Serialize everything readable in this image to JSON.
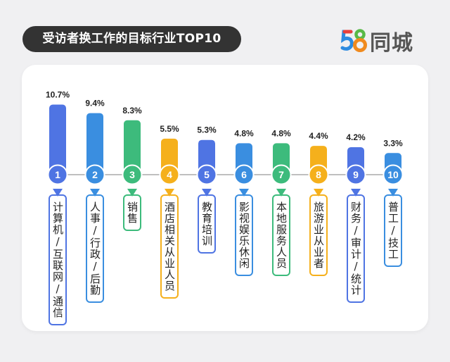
{
  "header": {
    "title": "受访者换工作的目标行业TOP10",
    "logo": {
      "digits": "58",
      "text": "同城",
      "digit_colors": [
        "#e8403b",
        "#2d8be0",
        "#58b947",
        "#f08a1e"
      ]
    }
  },
  "chart_data": {
    "type": "bar",
    "title": "受访者换工作的目标行业TOP10",
    "xlabel": "",
    "ylabel": "",
    "unit": "%",
    "ylim": [
      0,
      12
    ],
    "grid": false,
    "categories": [
      "计算机/互联网/通信",
      "人事/行政/后勤",
      "销售",
      "酒店相关从业人员",
      "教育培训",
      "影视娱乐休闲",
      "本地服务人员",
      "旅游业从业者",
      "财务/审计/统计",
      "普工/技工"
    ],
    "ranks": [
      "1",
      "2",
      "3",
      "4",
      "5",
      "6",
      "7",
      "8",
      "9",
      "10"
    ],
    "values": [
      10.7,
      9.4,
      8.3,
      5.5,
      5.3,
      4.8,
      4.8,
      4.4,
      4.2,
      3.3
    ],
    "value_labels": [
      "10.7%",
      "9.4%",
      "8.3%",
      "5.5%",
      "5.3%",
      "4.8%",
      "4.8%",
      "4.4%",
      "4.2%",
      "3.3%"
    ],
    "colors": [
      "#4f74e3",
      "#3a8ee0",
      "#3dbb7c",
      "#f5b01c",
      "#4f74e3",
      "#3a8ee0",
      "#3dbb7c",
      "#f5b01c",
      "#4f74e3",
      "#3a8ee0"
    ]
  }
}
